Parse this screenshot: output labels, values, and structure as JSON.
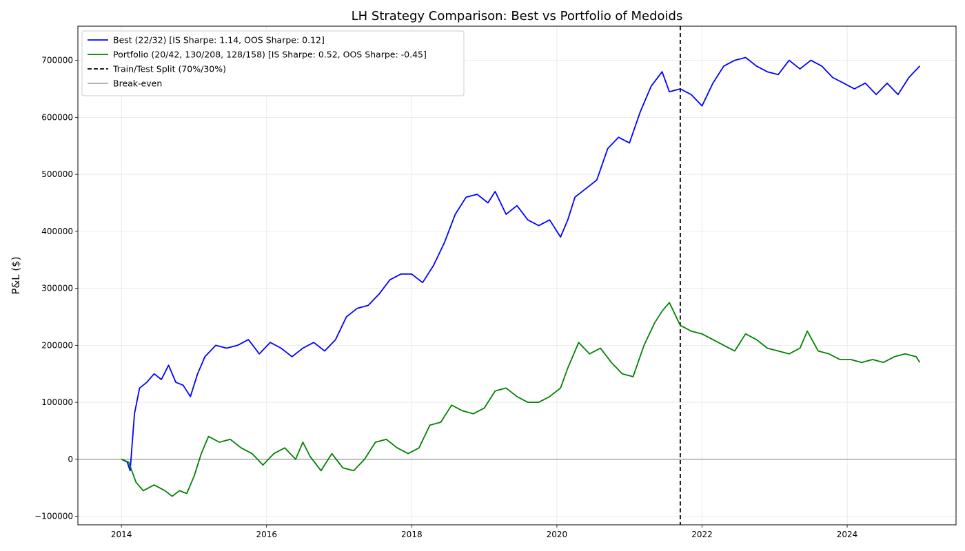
{
  "chart_data": {
    "type": "line",
    "title": "LH Strategy Comparison: Best vs Portfolio of Medoids",
    "xlabel": "",
    "ylabel": "P&L ($)",
    "xlim": [
      2013.4,
      2025.5
    ],
    "ylim": [
      -115000,
      760000
    ],
    "x_ticks": [
      2014,
      2016,
      2018,
      2020,
      2022,
      2024
    ],
    "x_tick_labels": [
      "2014",
      "2016",
      "2018",
      "2020",
      "2022",
      "2024"
    ],
    "y_ticks": [
      -100000,
      0,
      100000,
      200000,
      300000,
      400000,
      500000,
      600000,
      700000
    ],
    "y_tick_labels": [
      "−100000",
      "0",
      "100000",
      "200000",
      "300000",
      "400000",
      "500000",
      "600000",
      "700000"
    ],
    "grid": true,
    "legend_position": "upper-left",
    "series": [
      {
        "name": "Best (22/32) [IS Sharpe: 1.14, OOS Sharpe: 0.12]",
        "color": "#0000ff",
        "style": "solid",
        "x": [
          2014.0,
          2014.08,
          2014.12,
          2014.18,
          2014.25,
          2014.35,
          2014.45,
          2014.55,
          2014.65,
          2014.75,
          2014.85,
          2014.95,
          2015.05,
          2015.15,
          2015.3,
          2015.45,
          2015.6,
          2015.75,
          2015.9,
          2016.05,
          2016.2,
          2016.35,
          2016.5,
          2016.65,
          2016.8,
          2016.95,
          2017.1,
          2017.25,
          2017.4,
          2017.55,
          2017.7,
          2017.85,
          2018.0,
          2018.15,
          2018.3,
          2018.45,
          2018.6,
          2018.75,
          2018.9,
          2019.05,
          2019.15,
          2019.3,
          2019.45,
          2019.6,
          2019.75,
          2019.9,
          2020.05,
          2020.15,
          2020.25,
          2020.4,
          2020.55,
          2020.7,
          2020.85,
          2021.0,
          2021.15,
          2021.3,
          2021.45,
          2021.55,
          2021.7,
          2021.85,
          2022.0,
          2022.15,
          2022.3,
          2022.45,
          2022.6,
          2022.75,
          2022.9,
          2023.05,
          2023.2,
          2023.35,
          2023.5,
          2023.65,
          2023.8,
          2023.95,
          2024.1,
          2024.25,
          2024.4,
          2024.55,
          2024.7,
          2024.85,
          2025.0
        ],
        "values": [
          0,
          -5000,
          -20000,
          80000,
          125000,
          135000,
          150000,
          140000,
          165000,
          135000,
          130000,
          110000,
          150000,
          180000,
          200000,
          195000,
          200000,
          210000,
          185000,
          205000,
          195000,
          180000,
          195000,
          205000,
          190000,
          210000,
          250000,
          265000,
          270000,
          290000,
          315000,
          325000,
          325000,
          310000,
          340000,
          380000,
          430000,
          460000,
          465000,
          450000,
          470000,
          430000,
          445000,
          420000,
          410000,
          420000,
          390000,
          420000,
          460000,
          475000,
          490000,
          545000,
          565000,
          555000,
          610000,
          655000,
          680000,
          645000,
          650000,
          640000,
          620000,
          660000,
          690000,
          700000,
          705000,
          690000,
          680000,
          675000,
          700000,
          685000,
          700000,
          690000,
          670000,
          660000,
          650000,
          660000,
          640000,
          660000,
          640000,
          670000,
          690000
        ]
      },
      {
        "name": "Portfolio (20/42, 130/208, 128/158) [IS Sharpe: 0.52, OOS Sharpe: -0.45]",
        "color": "#008000",
        "style": "solid",
        "x": [
          2014.0,
          2014.1,
          2014.2,
          2014.3,
          2014.45,
          2014.6,
          2014.7,
          2014.8,
          2014.9,
          2015.0,
          2015.1,
          2015.2,
          2015.35,
          2015.5,
          2015.65,
          2015.8,
          2015.95,
          2016.1,
          2016.25,
          2016.4,
          2016.5,
          2016.6,
          2016.75,
          2016.9,
          2017.05,
          2017.2,
          2017.35,
          2017.5,
          2017.65,
          2017.8,
          2017.95,
          2018.1,
          2018.25,
          2018.4,
          2018.55,
          2018.7,
          2018.85,
          2019.0,
          2019.15,
          2019.3,
          2019.45,
          2019.6,
          2019.75,
          2019.9,
          2020.05,
          2020.15,
          2020.3,
          2020.45,
          2020.6,
          2020.75,
          2020.9,
          2021.05,
          2021.2,
          2021.35,
          2021.45,
          2021.55,
          2021.7,
          2021.85,
          2022.0,
          2022.15,
          2022.3,
          2022.45,
          2022.6,
          2022.75,
          2022.9,
          2023.05,
          2023.2,
          2023.35,
          2023.45,
          2023.6,
          2023.75,
          2023.9,
          2024.05,
          2024.2,
          2024.35,
          2024.5,
          2024.65,
          2024.8,
          2024.95,
          2025.0
        ],
        "values": [
          0,
          -5000,
          -40000,
          -55000,
          -45000,
          -55000,
          -65000,
          -55000,
          -60000,
          -30000,
          10000,
          40000,
          30000,
          35000,
          20000,
          10000,
          -10000,
          10000,
          20000,
          0,
          30000,
          5000,
          -20000,
          10000,
          -15000,
          -20000,
          0,
          30000,
          35000,
          20000,
          10000,
          20000,
          60000,
          65000,
          95000,
          85000,
          80000,
          90000,
          120000,
          125000,
          110000,
          100000,
          100000,
          110000,
          125000,
          160000,
          205000,
          185000,
          195000,
          170000,
          150000,
          145000,
          200000,
          240000,
          260000,
          275000,
          235000,
          225000,
          220000,
          210000,
          200000,
          190000,
          220000,
          210000,
          195000,
          190000,
          185000,
          195000,
          225000,
          190000,
          185000,
          175000,
          175000,
          170000,
          175000,
          170000,
          180000,
          185000,
          180000,
          170000
        ]
      },
      {
        "name": "Train/Test Split (70%/30%)",
        "color": "#000000",
        "style": "dashed",
        "x_value": 2021.7
      },
      {
        "name": "Break-even",
        "color": "#aaaaaa",
        "style": "solid",
        "y_value": 0
      }
    ]
  }
}
